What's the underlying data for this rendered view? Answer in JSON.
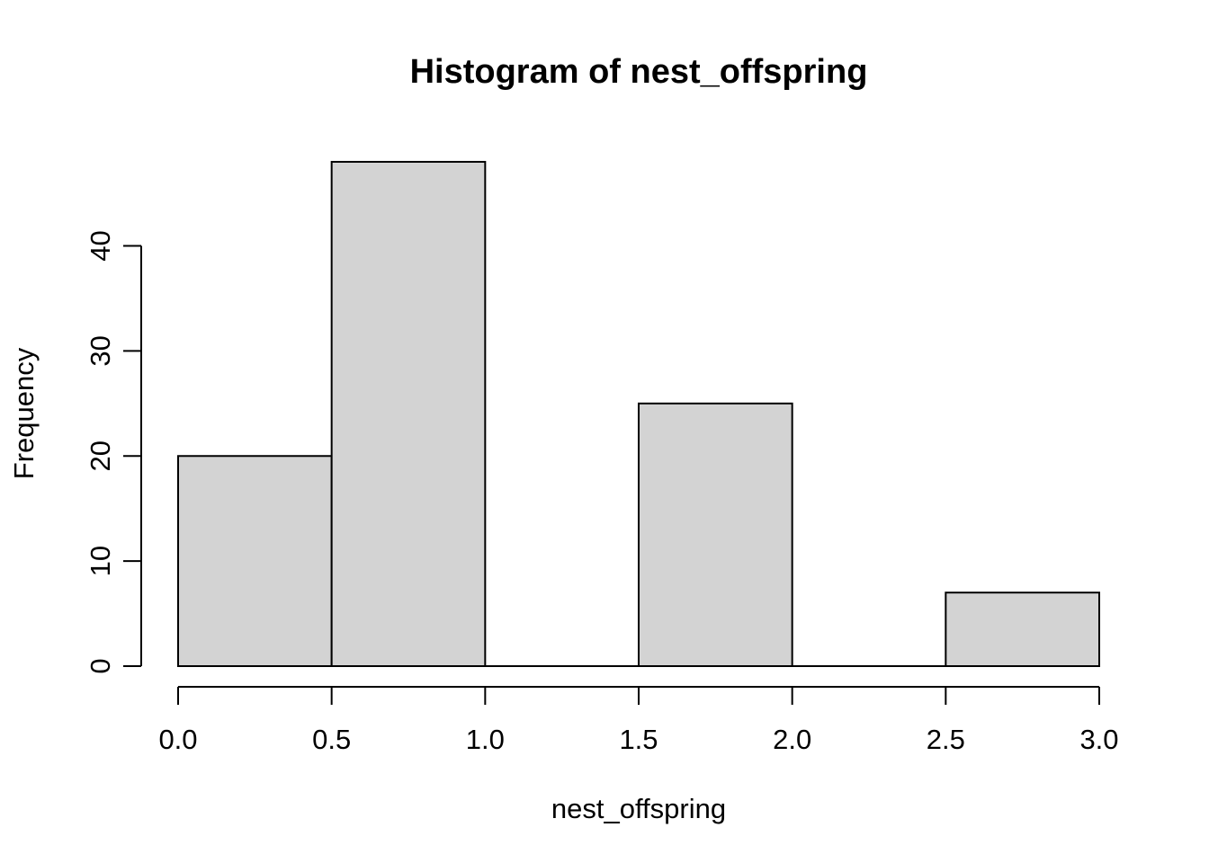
{
  "chart_data": {
    "type": "bar",
    "title": "Histogram of nest_offspring",
    "xlabel": "nest_offspring",
    "ylabel": "Frequency",
    "bins": [
      {
        "start": 0.0,
        "end": 0.5,
        "count": 20
      },
      {
        "start": 0.5,
        "end": 1.0,
        "count": 48
      },
      {
        "start": 1.0,
        "end": 1.5,
        "count": 0
      },
      {
        "start": 1.5,
        "end": 2.0,
        "count": 25
      },
      {
        "start": 2.0,
        "end": 2.5,
        "count": 0
      },
      {
        "start": 2.5,
        "end": 3.0,
        "count": 7
      }
    ],
    "xlim": [
      0,
      3
    ],
    "ylim": [
      0,
      48
    ],
    "x_ticks": [
      0.0,
      0.5,
      1.0,
      1.5,
      2.0,
      2.5,
      3.0
    ],
    "x_tick_labels": [
      "0.0",
      "0.5",
      "1.0",
      "1.5",
      "2.0",
      "2.5",
      "3.0"
    ],
    "y_ticks": [
      0,
      10,
      20,
      30,
      40
    ],
    "y_tick_labels": [
      "0",
      "10",
      "20",
      "30",
      "40"
    ],
    "grid": false,
    "bar_fill": "#d3d3d3",
    "bar_stroke": "#000000"
  }
}
